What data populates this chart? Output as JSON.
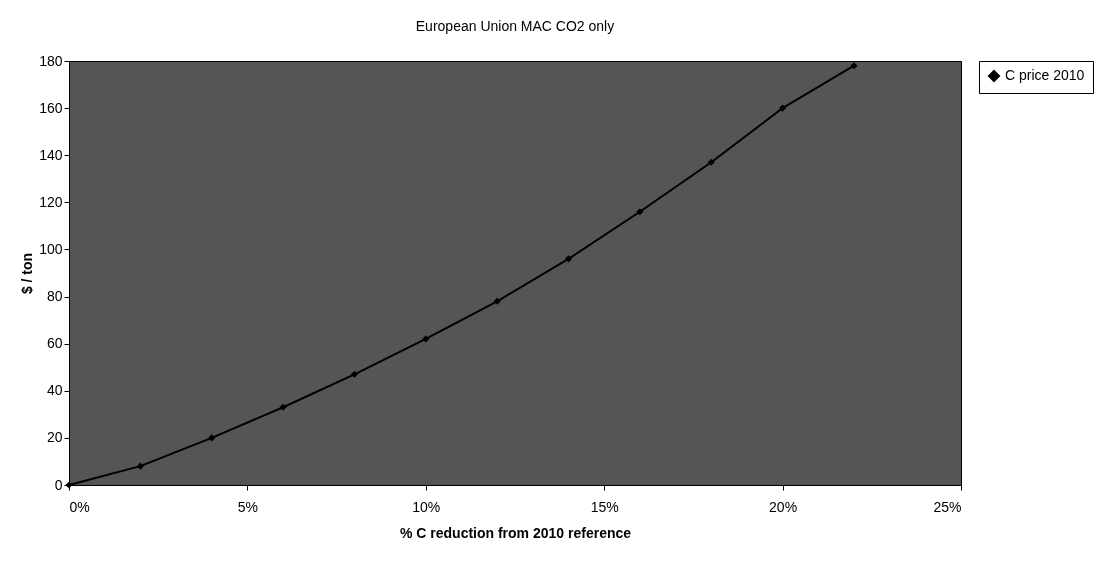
{
  "chart_data": {
    "type": "line",
    "title": "European Union MAC CO2 only",
    "xlabel": "% C reduction from 2010 reference",
    "ylabel": "$ / ton",
    "x": [
      0,
      2,
      4,
      6,
      8,
      10,
      12,
      14,
      16,
      18,
      20,
      22
    ],
    "series": [
      {
        "name": "C price 2010",
        "color": "#000000",
        "values": [
          0,
          8,
          20,
          33,
          47,
          62,
          78,
          96,
          116,
          137,
          160,
          178
        ]
      }
    ],
    "xlim": [
      0,
      25
    ],
    "xticks": [
      {
        "value": 0,
        "label": "0%"
      },
      {
        "value": 5,
        "label": "5%"
      },
      {
        "value": 10,
        "label": "10%"
      },
      {
        "value": 15,
        "label": "15%"
      },
      {
        "value": 20,
        "label": "20%"
      },
      {
        "value": 25,
        "label": "25%"
      }
    ],
    "ylim": [
      0,
      180
    ],
    "yticks": [
      0,
      20,
      40,
      60,
      80,
      100,
      120,
      140,
      160,
      180
    ],
    "grid": false,
    "legend": "right",
    "marker": "diamond",
    "line_style": "solid"
  }
}
